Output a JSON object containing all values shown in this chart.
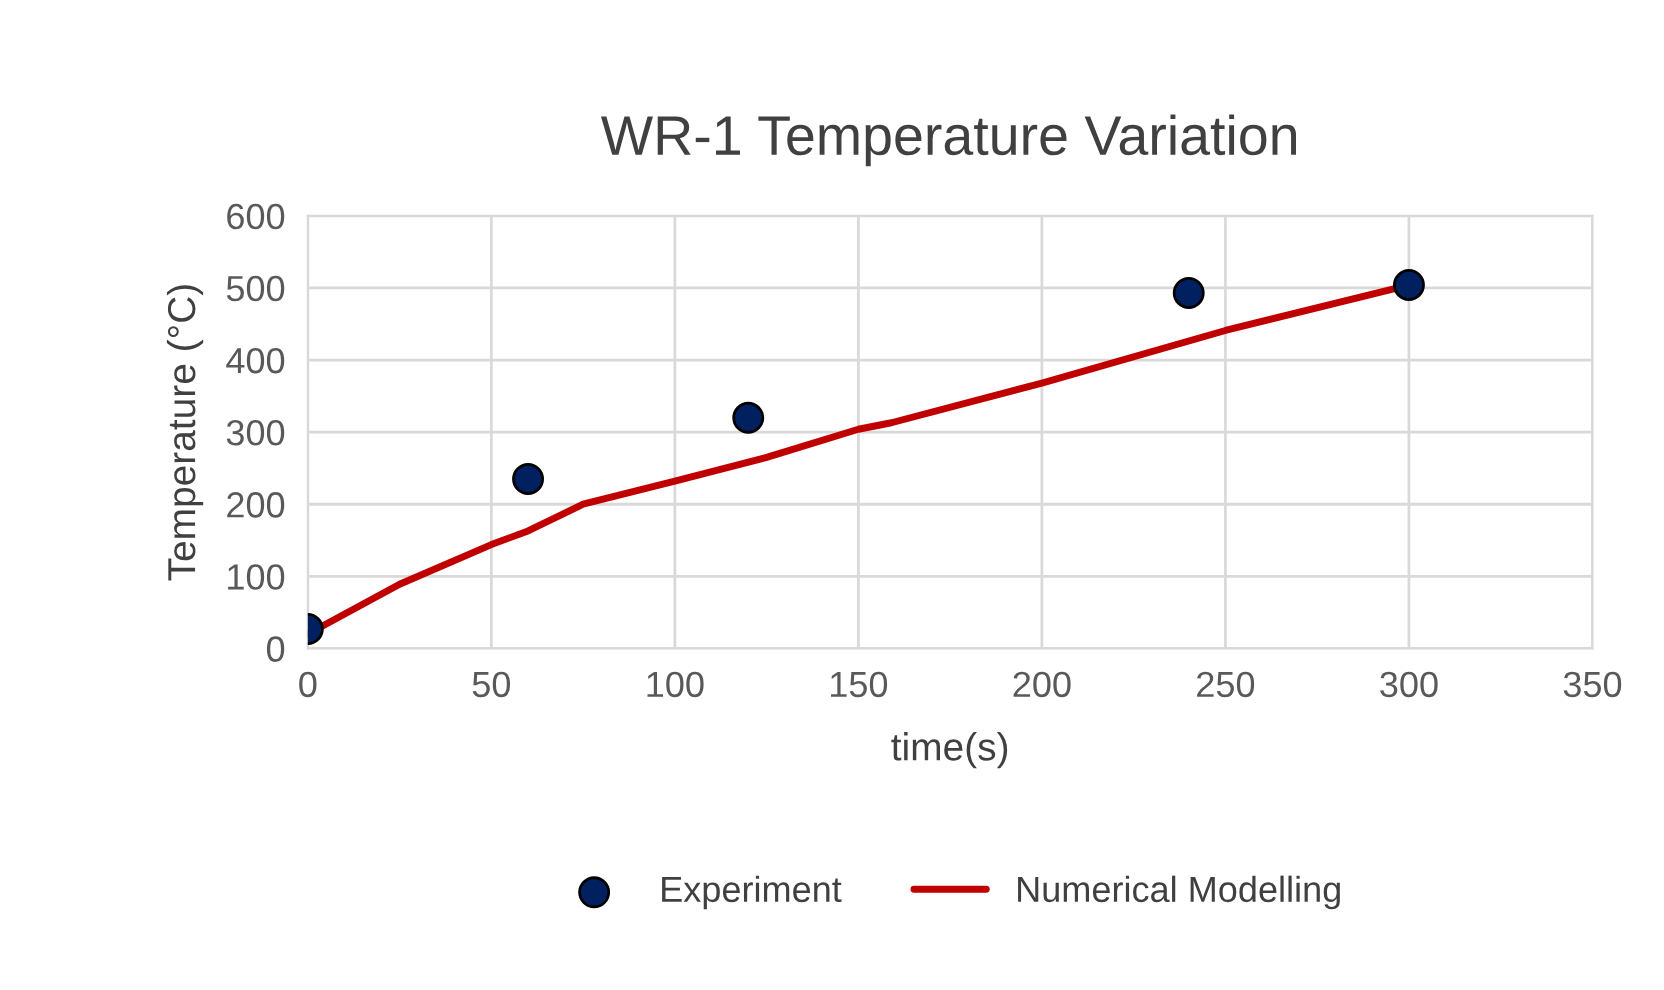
{
  "chart_data": {
    "type": "line",
    "title": "WR-1 Temperature Variation",
    "xlabel": "time(s)",
    "ylabel": "Temperature (°C)",
    "series": [
      {
        "name": "Experiment",
        "type": "scatter",
        "color": "#002060",
        "x": [
          0,
          60,
          120,
          240,
          300
        ],
        "values": [
          27,
          235,
          320,
          493,
          504
        ]
      },
      {
        "name": "Numerical Modelling",
        "color": "#c00000",
        "x": [
          0,
          25,
          50,
          60,
          75,
          100,
          125,
          150,
          159,
          200,
          250,
          300
        ],
        "values": [
          20,
          89,
          144,
          163,
          200,
          232,
          265,
          304,
          313,
          368,
          441,
          504
        ]
      }
    ],
    "xlim": [
      0,
      350
    ],
    "xticks": [
      0,
      50,
      100,
      150,
      200,
      250,
      300,
      350
    ],
    "ylim": [
      0,
      600
    ],
    "yticks": [
      0,
      100,
      200,
      300,
      400,
      500,
      600
    ],
    "grid": true,
    "legend": "bottom"
  }
}
